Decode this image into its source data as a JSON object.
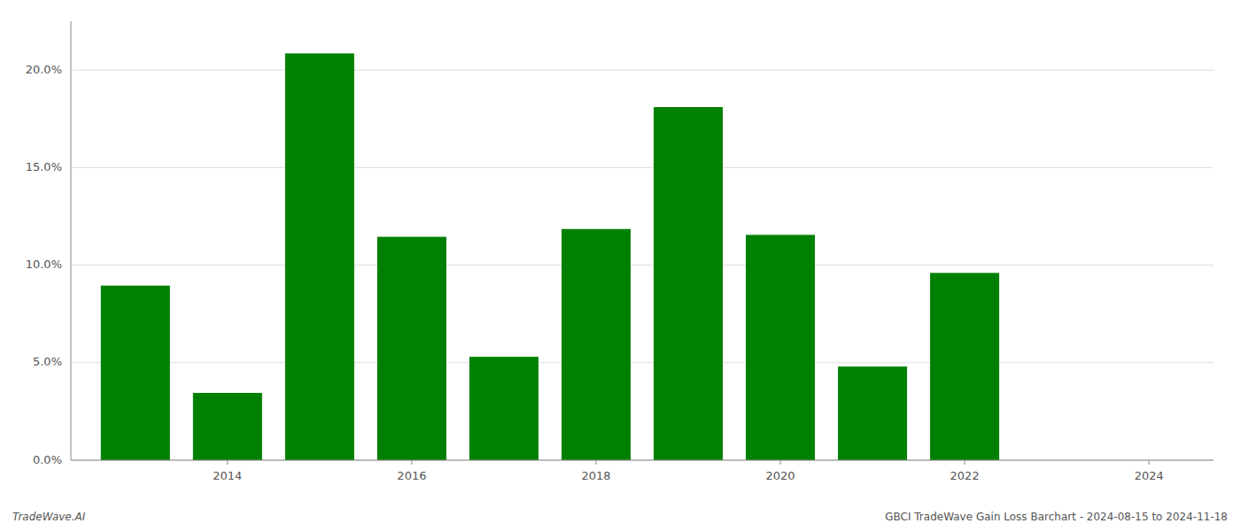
{
  "chart_data": {
    "type": "bar",
    "x": [
      2013,
      2014,
      2015,
      2016,
      2017,
      2018,
      2019,
      2020,
      2021,
      2022,
      2023
    ],
    "values": [
      8.95,
      3.45,
      20.85,
      11.45,
      5.3,
      11.85,
      18.1,
      11.55,
      4.8,
      9.6,
      0.0
    ],
    "color": "#008000",
    "xlim": [
      2012.3,
      2024.7
    ],
    "xticks": [
      2014,
      2016,
      2018,
      2020,
      2022,
      2024
    ],
    "ylim": [
      0,
      22.5
    ],
    "yticks": [
      {
        "value": 0.0,
        "label": "0.0%"
      },
      {
        "value": 5.0,
        "label": "5.0%"
      },
      {
        "value": 10.0,
        "label": "10.0%"
      },
      {
        "value": 15.0,
        "label": "15.0%"
      },
      {
        "value": 20.0,
        "label": "20.0%"
      }
    ],
    "grid": true,
    "annotations": [
      "TradeWave.AI",
      "GBCI TradeWave Gain Loss Barchart - 2024-08-15 to 2024-11-18"
    ]
  }
}
